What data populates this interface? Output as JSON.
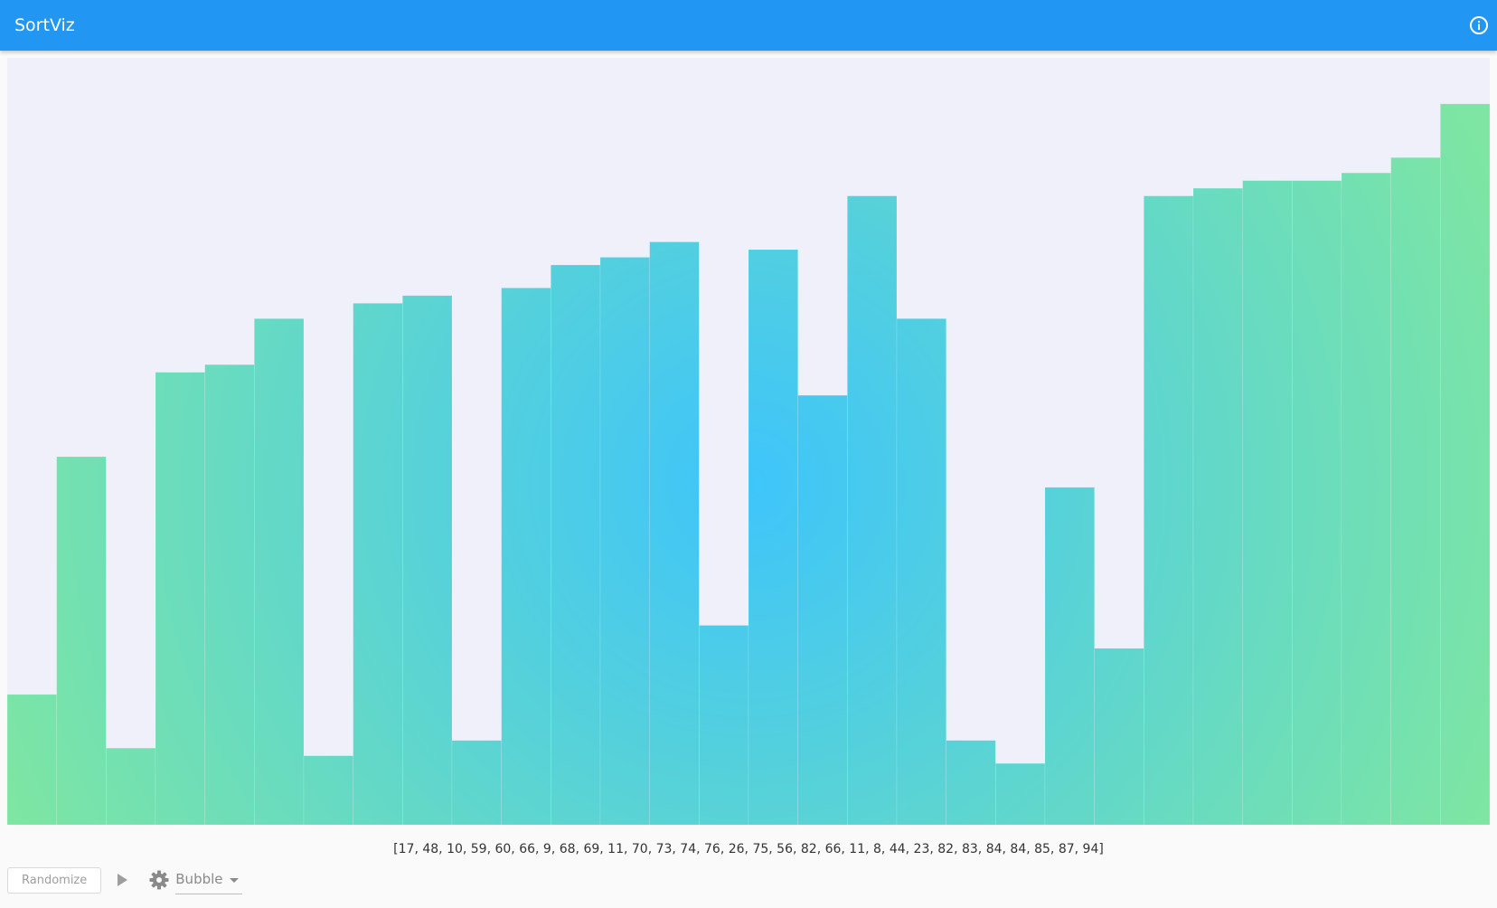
{
  "app": {
    "title": "SortViz"
  },
  "icons": {
    "info": "info-circle-icon",
    "play": "play-icon",
    "settings": "gear-icon",
    "dropdown": "caret-down-icon"
  },
  "colors": {
    "app_bar": "#2196f3",
    "chart_background": "#f0f0fb",
    "bar_edge": "#7ee6a2",
    "bar_center": "#3ec5fb"
  },
  "chart_data": {
    "type": "bar",
    "values": [
      17,
      48,
      10,
      59,
      60,
      66,
      9,
      68,
      69,
      11,
      70,
      73,
      74,
      76,
      26,
      75,
      56,
      82,
      66,
      11,
      8,
      44,
      23,
      82,
      83,
      84,
      84,
      85,
      87,
      94
    ],
    "ylim": [
      0,
      100
    ],
    "grid": false,
    "legend": "none"
  },
  "array_readout": "[17, 48, 10, 59, 60, 66, 9, 68, 69, 11, 70, 73, 74, 76, 26, 75, 56, 82, 66, 11, 8, 44, 23, 82, 83, 84, 84, 85, 87, 94]",
  "controls": {
    "randomize_label": "Randomize",
    "algorithm_selected": "Bubble"
  }
}
